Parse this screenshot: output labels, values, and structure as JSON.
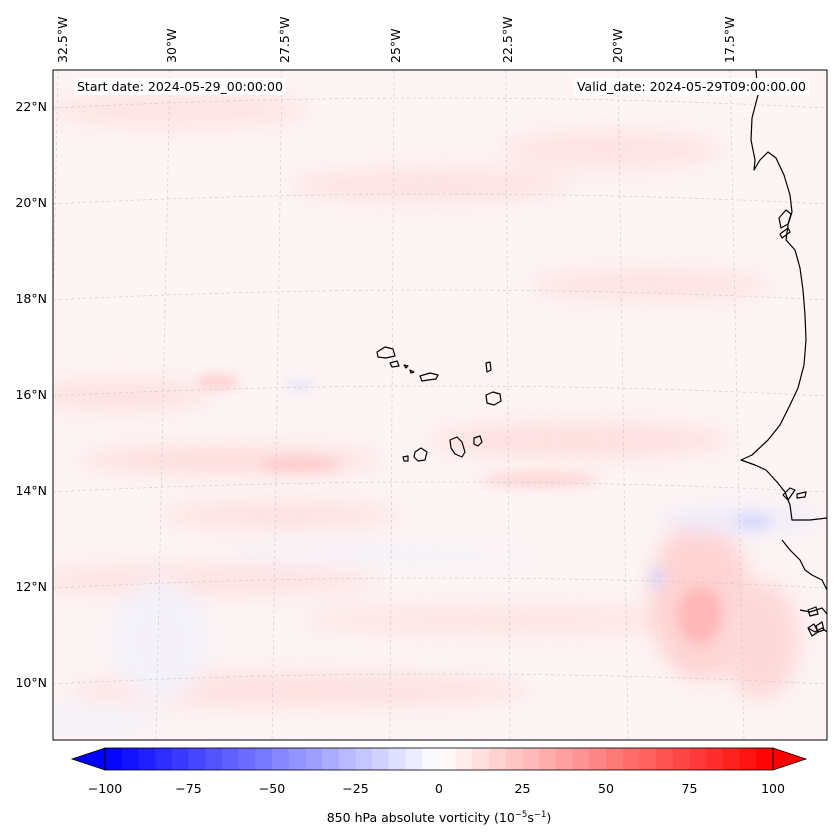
{
  "map": {
    "start_date_label": "Start date: 2024-05-29_00:00:00",
    "valid_date_label": "Valid_date: 2024-05-29T09:00:00.00",
    "lon_labels": [
      "32.5°W",
      "30°W",
      "27.5°W",
      "25°W",
      "22.5°W",
      "20°W",
      "17.5°W"
    ],
    "lat_labels": [
      "22°N",
      "20°N",
      "18°N",
      "16°N",
      "14°N",
      "12°N",
      "10°N"
    ],
    "colorbar": {
      "label_text": "850 hPa absolute vorticity (10",
      "label_exp1": "−5",
      "label_mid": "s",
      "label_exp2": "−1",
      "label_close": ")",
      "ticks": [
        "−100",
        "−75",
        "−50",
        "−25",
        "0",
        "25",
        "50",
        "75",
        "100"
      ],
      "min": -100,
      "max": 100,
      "colormap": "bwr",
      "extend": "both"
    },
    "colors": {
      "positive": "#ff0000",
      "negative": "#0000ff",
      "coast": "#000000",
      "grid": "#c8c8c8"
    }
  }
}
